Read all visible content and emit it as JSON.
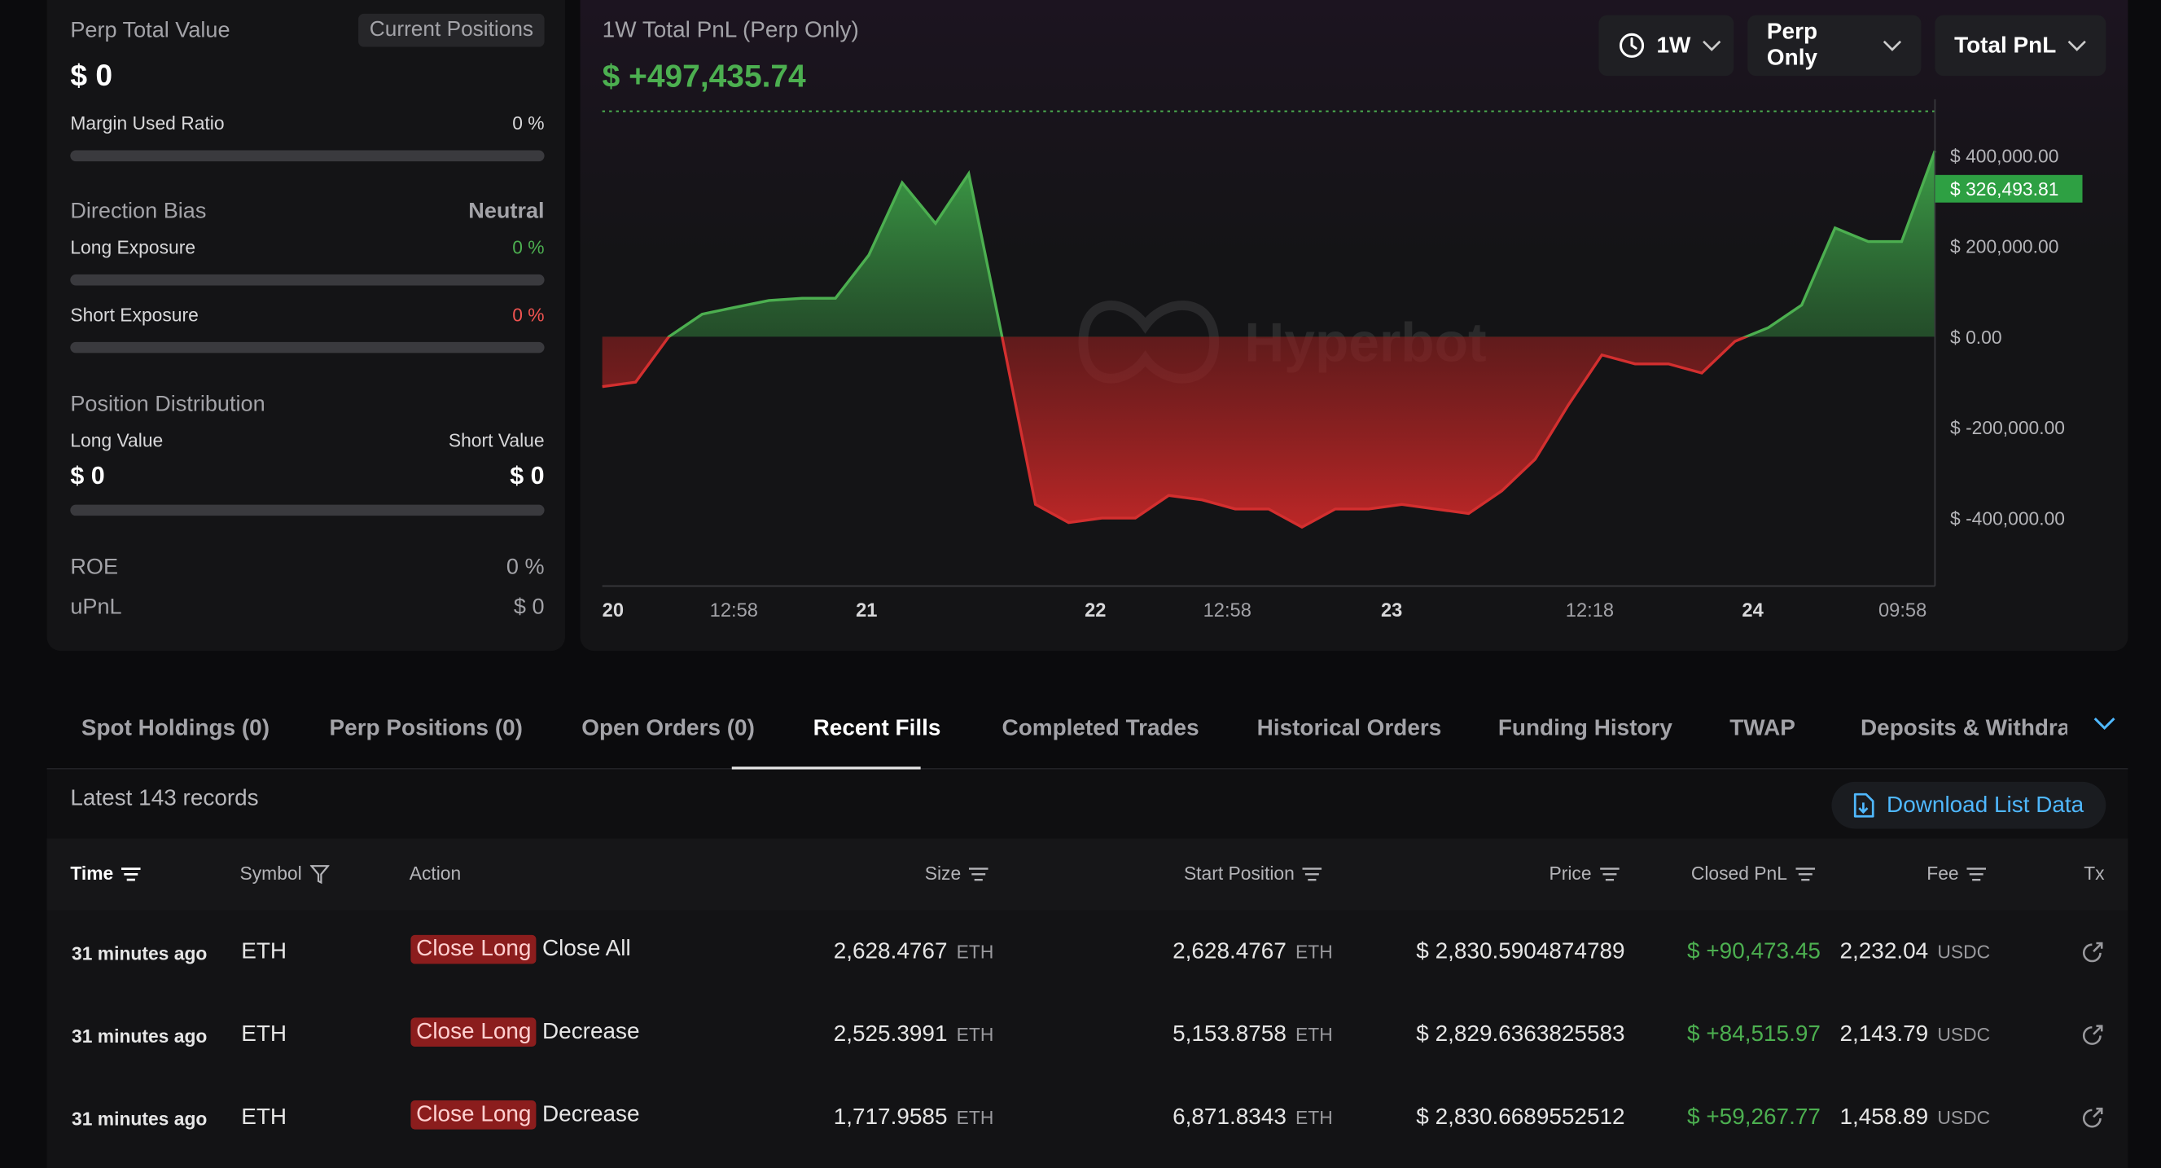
{
  "left_panel": {
    "perp_total_value_label": "Perp Total Value",
    "current_positions_chip": "Current Positions",
    "perp_total_value": "$ 0",
    "margin_used_ratio_label": "Margin Used Ratio",
    "margin_used_ratio_value": "0 %",
    "margin_used_ratio_fraction": 0,
    "direction_bias_label": "Direction Bias",
    "direction_bias_value": "Neutral",
    "long_exposure_label": "Long Exposure",
    "long_exposure_value": "0 %",
    "long_exposure_fraction": 0,
    "short_exposure_label": "Short Exposure",
    "short_exposure_value": "0 %",
    "short_exposure_fraction": 0,
    "position_distribution_label": "Position Distribution",
    "long_value_label": "Long Value",
    "short_value_label": "Short Value",
    "long_value": "$ 0",
    "short_value": "$ 0",
    "distribution_long_fraction": 0,
    "roe_label": "ROE",
    "roe_value": "0 %",
    "upnl_label": "uPnL",
    "upnl_value": "$ 0"
  },
  "chart_panel": {
    "title": "1W Total PnL (Perp Only)",
    "total_value": "$ +497,435.74",
    "range_dropdown": "1W",
    "scope_dropdown": "Perp Only",
    "metric_dropdown": "Total PnL",
    "watermark": "Hyperbot",
    "colors": {
      "positive": "#4caf50",
      "negative": "#d32f2f",
      "highlight_bg": "#2ea043"
    }
  },
  "chart_data": {
    "type": "area",
    "ylim": [
      -550000,
      530000
    ],
    "y_ticks": [
      400000,
      200000,
      0,
      -200000,
      -400000
    ],
    "y_tick_labels": [
      "$ 400,000.00",
      "$ 200,000.00",
      "$ 0.00",
      "$ -200,000.00",
      "$ -400,000.00"
    ],
    "x_tick_labels": [
      "20",
      "12:58",
      "21",
      "22",
      "12:58",
      "23",
      "12:18",
      "24",
      "09:58"
    ],
    "current_value": 326493.81,
    "current_value_label": "$ 326,493.81",
    "reference_line_value": 497435.74,
    "x": [
      0,
      1,
      2,
      3,
      4,
      5,
      6,
      7,
      8,
      9,
      10,
      11,
      12,
      13,
      14,
      15,
      16,
      17,
      18,
      19,
      20,
      21,
      22,
      23,
      24,
      25,
      26,
      27,
      28,
      29,
      30,
      31,
      32,
      33,
      34,
      35,
      36,
      37,
      38,
      39,
      40
    ],
    "values": [
      -110000,
      -100000,
      0,
      50000,
      65000,
      80000,
      85000,
      85000,
      180000,
      340000,
      250000,
      360000,
      0,
      -370000,
      -410000,
      -400000,
      -400000,
      -350000,
      -360000,
      -380000,
      -380000,
      -420000,
      -380000,
      -380000,
      -370000,
      -380000,
      -390000,
      -340000,
      -270000,
      -150000,
      -40000,
      -60000,
      -60000,
      -80000,
      -10000,
      20000,
      70000,
      240000,
      210000,
      210000,
      410000
    ]
  },
  "tabs": [
    {
      "label": "Spot Holdings (0)"
    },
    {
      "label": "Perp Positions (0)"
    },
    {
      "label": "Open Orders (0)"
    },
    {
      "label": "Recent Fills"
    },
    {
      "label": "Completed Trades"
    },
    {
      "label": "Historical Orders"
    },
    {
      "label": "Funding History"
    },
    {
      "label": "TWAP"
    },
    {
      "label": "Deposits & Withdraw"
    }
  ],
  "records": {
    "count_text": "Latest 143 records",
    "download_label": "Download List Data"
  },
  "table": {
    "headers": {
      "time": "Time",
      "symbol": "Symbol",
      "action": "Action",
      "size": "Size",
      "start_position": "Start Position",
      "price": "Price",
      "closed_pnl": "Closed PnL",
      "fee": "Fee",
      "tx": "Tx"
    },
    "rows": [
      {
        "time": "31 minutes ago",
        "symbol": "ETH",
        "action_badge": "Close Long",
        "action_detail": "Close All",
        "size": "2,628.4767",
        "size_unit": "ETH",
        "start_position": "2,628.4767",
        "start_unit": "ETH",
        "price": "$ 2,830.5904874789",
        "closed_pnl": "$ +90,473.45",
        "fee": "2,232.04",
        "fee_unit": "USDC"
      },
      {
        "time": "31 minutes ago",
        "symbol": "ETH",
        "action_badge": "Close Long",
        "action_detail": "Decrease",
        "size": "2,525.3991",
        "size_unit": "ETH",
        "start_position": "5,153.8758",
        "start_unit": "ETH",
        "price": "$ 2,829.6363825583",
        "closed_pnl": "$ +84,515.97",
        "fee": "2,143.79",
        "fee_unit": "USDC"
      },
      {
        "time": "31 minutes ago",
        "symbol": "ETH",
        "action_badge": "Close Long",
        "action_detail": "Decrease",
        "size": "1,717.9585",
        "size_unit": "ETH",
        "start_position": "6,871.8343",
        "start_unit": "ETH",
        "price": "$ 2,830.6689552512",
        "closed_pnl": "$ +59,267.77",
        "fee": "1,458.89",
        "fee_unit": "USDC"
      }
    ]
  }
}
